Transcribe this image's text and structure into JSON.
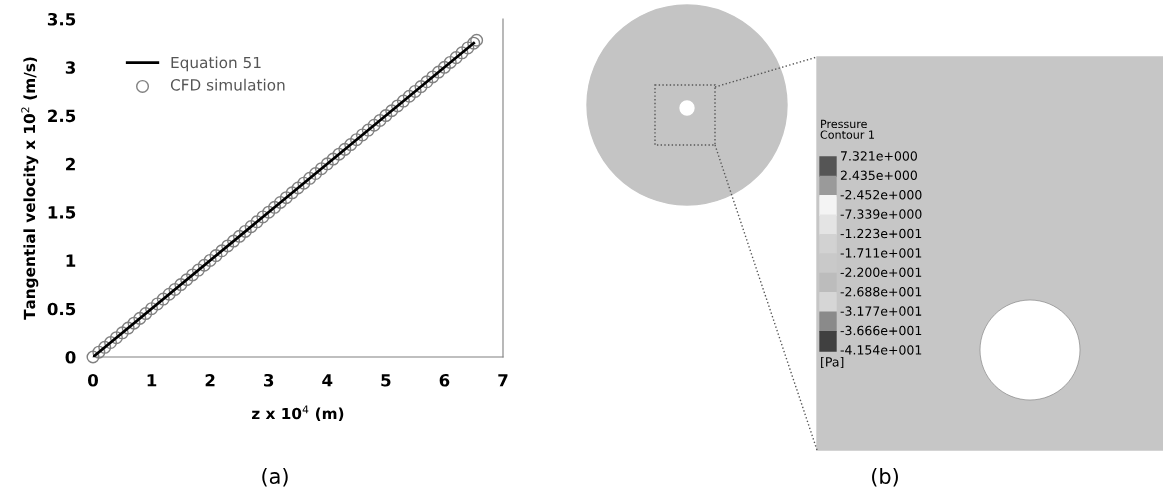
{
  "chart_data": [
    {
      "type": "line",
      "xlabel": "z x 10$^{4}$ (m)",
      "ylabel": "Tangential velocity x 10$^{2}$ (m/s)",
      "xlim": [
        0,
        7
      ],
      "ylim": [
        0,
        3.5
      ],
      "xticks": [
        0,
        1,
        2,
        3,
        4,
        5,
        6,
        7
      ],
      "yticks": [
        0,
        0.5,
        1,
        1.5,
        2,
        2.5,
        3,
        3.5
      ],
      "grid": false,
      "legend": "top left",
      "annotations": [
        "(a)"
      ],
      "series": [
        {
          "name": "Equation 51",
          "type": "line",
          "color": "#000000",
          "marker": "none",
          "line_style": "solid",
          "x": [
            0,
            6.5
          ],
          "values": [
            0,
            3.25
          ]
        },
        {
          "name": "CFD simulation",
          "type": "scatter",
          "color": "#808080",
          "marker": "circle",
          "x": [
            0,
            0.1,
            0.2,
            0.3,
            0.4,
            0.5,
            0.6,
            0.7,
            0.8,
            0.9,
            1.0,
            1.1,
            1.2,
            1.3,
            1.4,
            1.5,
            1.6,
            1.7,
            1.8,
            1.9,
            2.0,
            2.1,
            2.2,
            2.3,
            2.4,
            2.5,
            2.6,
            2.7,
            2.8,
            2.9,
            3.0,
            3.1,
            3.2,
            3.3,
            3.4,
            3.5,
            3.6,
            3.7,
            3.8,
            3.9,
            4.0,
            4.1,
            4.2,
            4.3,
            4.4,
            4.5,
            4.6,
            4.7,
            4.8,
            4.9,
            5.0,
            5.1,
            5.2,
            5.3,
            5.4,
            5.5,
            5.6,
            5.7,
            5.8,
            5.9,
            6.0,
            6.1,
            6.2,
            6.3,
            6.4,
            6.5,
            6.55
          ],
          "values": [
            0,
            0.05,
            0.1,
            0.15,
            0.2,
            0.25,
            0.3,
            0.35,
            0.4,
            0.45,
            0.5,
            0.55,
            0.6,
            0.65,
            0.7,
            0.75,
            0.8,
            0.85,
            0.9,
            0.95,
            1.0,
            1.05,
            1.1,
            1.15,
            1.2,
            1.25,
            1.3,
            1.35,
            1.4,
            1.45,
            1.5,
            1.55,
            1.6,
            1.65,
            1.7,
            1.75,
            1.8,
            1.85,
            1.9,
            1.95,
            2.0,
            2.05,
            2.1,
            2.15,
            2.2,
            2.25,
            2.3,
            2.35,
            2.4,
            2.45,
            2.5,
            2.55,
            2.6,
            2.65,
            2.7,
            2.75,
            2.8,
            2.85,
            2.9,
            2.95,
            3.0,
            3.05,
            3.1,
            3.15,
            3.2,
            3.25,
            3.28
          ]
        }
      ]
    },
    {
      "type": "other",
      "title": "Pressure\nContour 1",
      "annotations": [
        "7.321e+000",
        "2.435e+000",
        "-2.452e+000",
        "-7.339e+000",
        "-1.223e+001",
        "-1.711e+001",
        "-2.200e+001",
        "-2.688e+001",
        "-3.177e+001",
        "-3.666e+001",
        "-4.154e+001",
        "[Pa]",
        "(b)"
      ]
    }
  ]
}
